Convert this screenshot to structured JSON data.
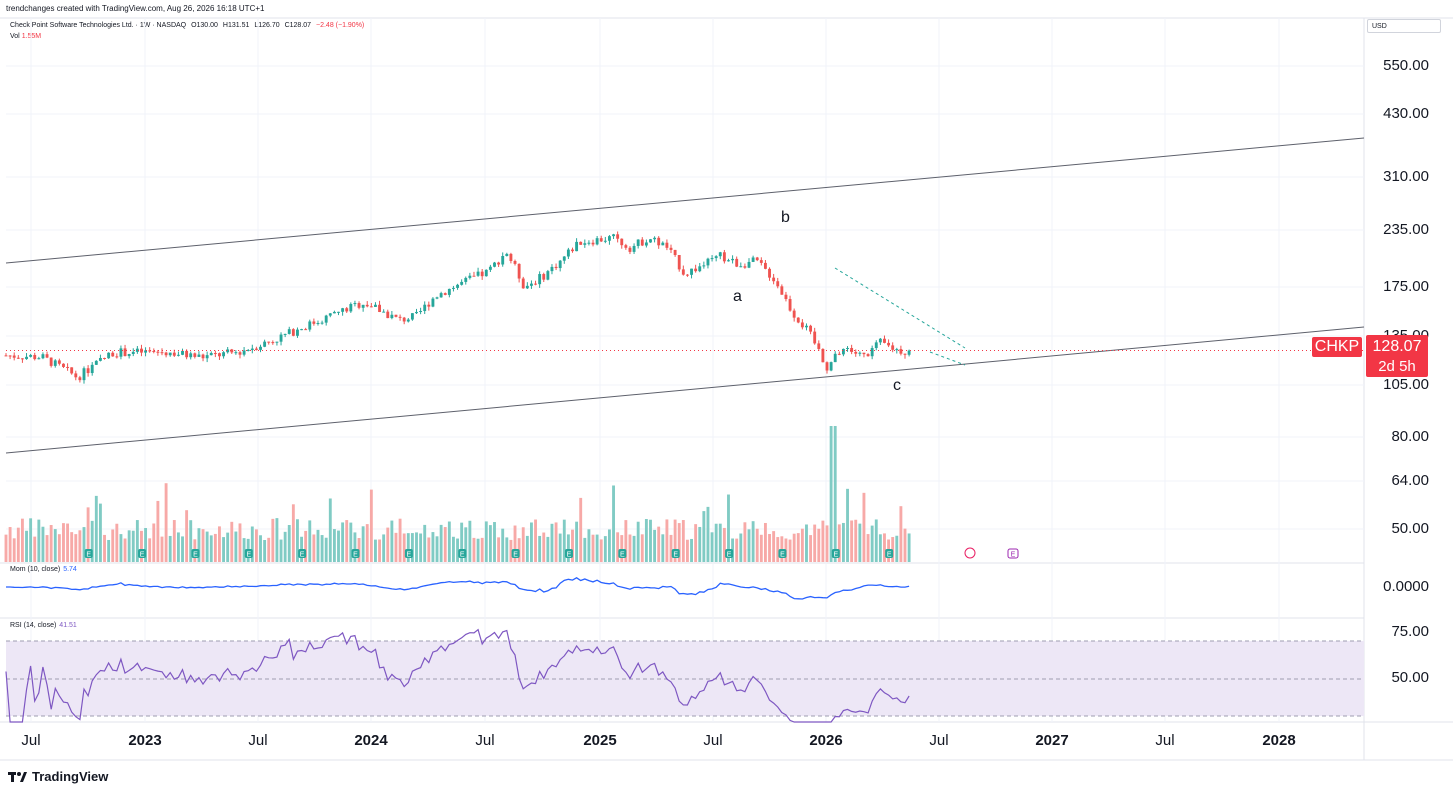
{
  "watermark": "trendchanges created with TradingView.com, Aug 26, 2026 16:18 UTC+1",
  "header": {
    "symbol": "Check Point Software Technologies Ltd. · 1W · NASDAQ",
    "open": "O130.00",
    "high": "H131.51",
    "low": "L126.70",
    "close": "C128.07",
    "change": "−2.48 (−1.90%)",
    "volume_label": "Vol",
    "volume_value": "1.55M"
  },
  "currency": "USD",
  "price_axis": [
    "550.00",
    "430.00",
    "310.00",
    "235.00",
    "175.00",
    "135.00",
    "105.00",
    "80.00",
    "64.00",
    "50.00"
  ],
  "momentum": {
    "label": "Mom (10, close)",
    "value": "5.74",
    "axis": "0.0000"
  },
  "rsi": {
    "label": "RSI (14, close)",
    "value": "41.51",
    "axis": [
      "75.00",
      "50.00"
    ]
  },
  "time_axis": [
    {
      "label": "Jul",
      "year": false
    },
    {
      "label": "2023",
      "year": true
    },
    {
      "label": "Jul",
      "year": false
    },
    {
      "label": "2024",
      "year": true
    },
    {
      "label": "Jul",
      "year": false
    },
    {
      "label": "2025",
      "year": true
    },
    {
      "label": "Jul",
      "year": false
    },
    {
      "label": "2026",
      "year": true
    },
    {
      "label": "Jul",
      "year": false
    },
    {
      "label": "2027",
      "year": true
    },
    {
      "label": "Jul",
      "year": false
    },
    {
      "label": "2028",
      "year": true
    }
  ],
  "last_price": {
    "ticker": "CHKP",
    "price": "128.07",
    "countdown": "2d 5h"
  },
  "wave_labels": [
    "a",
    "b",
    "c"
  ],
  "earnings_marker": "E",
  "brand": "TradingView",
  "colors": {
    "up": "#26a69a",
    "down": "#ef5350",
    "vol_up": "#80cbc4",
    "vol_down": "#f7a9a7",
    "mom": "#2962ff",
    "rsi": "#7e57c2",
    "rsi_band": "#ede7f6"
  },
  "chart_data": {
    "type": "candlestick",
    "interval": "1W",
    "x_range": [
      "2022-06",
      "2028-10"
    ],
    "y_scale": "log",
    "closes_approx": [
      [
        "2022-06",
        125
      ],
      [
        "2022-08",
        124
      ],
      [
        "2022-10",
        112
      ],
      [
        "2022-12",
        127
      ],
      [
        "2023-03",
        127
      ],
      [
        "2023-05",
        124
      ],
      [
        "2023-07",
        127
      ],
      [
        "2023-09",
        135
      ],
      [
        "2023-11",
        146
      ],
      [
        "2024-02",
        163
      ],
      [
        "2024-04",
        149
      ],
      [
        "2024-05",
        152
      ],
      [
        "2024-06",
        168
      ],
      [
        "2024-08",
        183
      ],
      [
        "2024-09",
        190
      ],
      [
        "2024-10",
        210
      ],
      [
        "2024-11",
        176
      ],
      [
        "2024-12",
        185
      ],
      [
        "2025-01",
        200
      ],
      [
        "2025-02",
        220
      ],
      [
        "2025-04",
        225
      ],
      [
        "2025-05",
        214
      ],
      [
        "2025-06",
        225
      ],
      [
        "2025-07",
        215
      ],
      [
        "2025-08",
        188
      ],
      [
        "2025-09",
        196
      ],
      [
        "2025-10",
        205
      ],
      [
        "2025-11",
        197
      ],
      [
        "2025-12",
        200
      ],
      [
        "2026-01",
        183
      ],
      [
        "2026-02",
        155
      ],
      [
        "2026-03",
        140
      ],
      [
        "2026-04",
        118
      ],
      [
        "2026-05",
        130
      ],
      [
        "2026-06",
        124
      ],
      [
        "2026-07",
        133
      ],
      [
        "2026-08",
        128.07
      ]
    ],
    "volume_peak_date": "2026-04",
    "channel": {
      "upper": "rising trendline",
      "lower": "rising trendline"
    },
    "indicators": [
      "Mom (10, close)",
      "RSI (14, close)"
    ]
  }
}
